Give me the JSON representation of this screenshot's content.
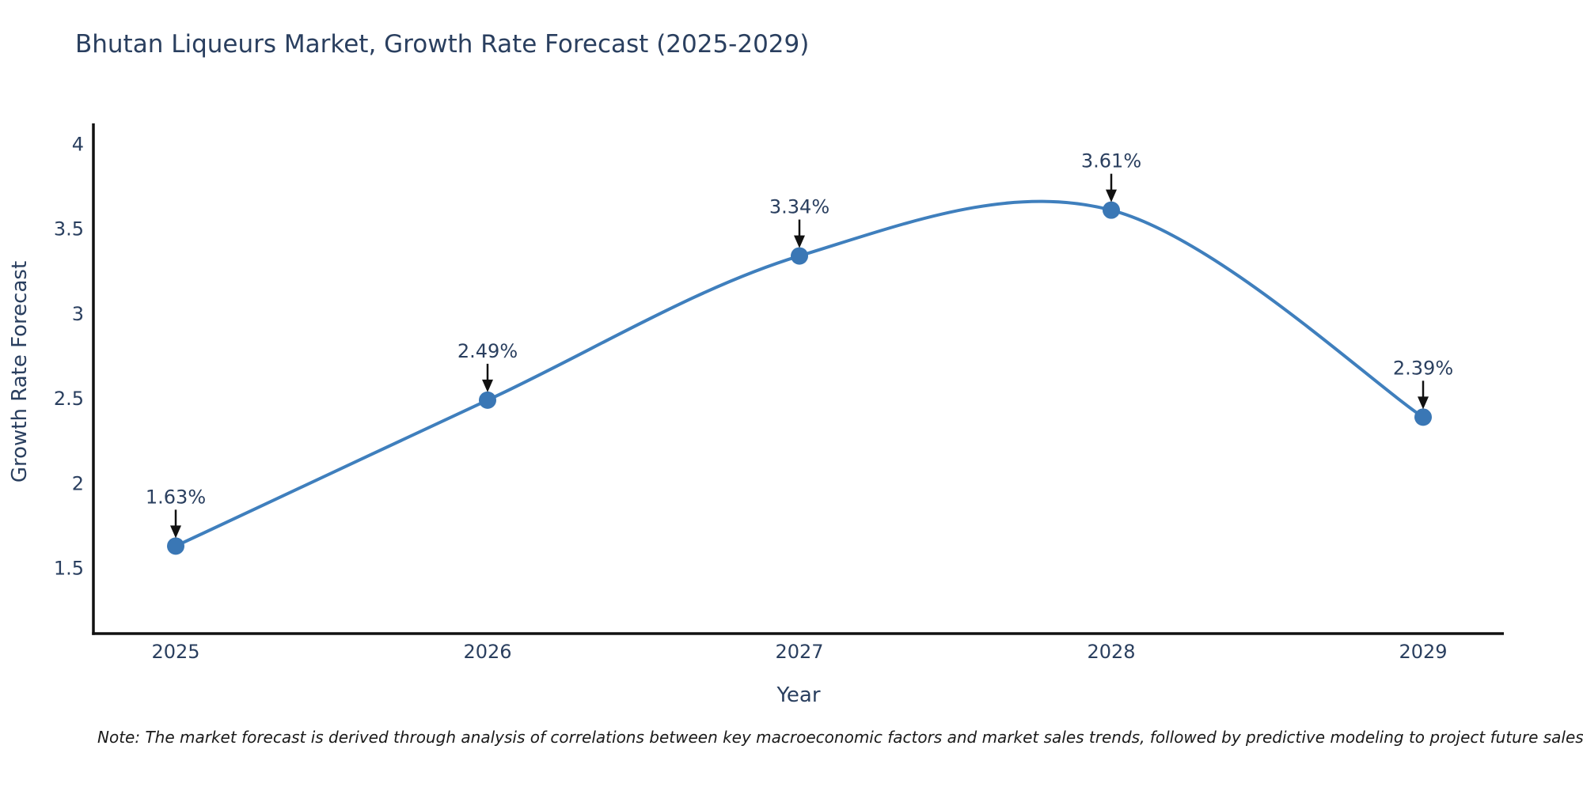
{
  "title": "Bhutan Liqueurs Market, Growth Rate Forecast (2025-2029)",
  "note": "Note: The market forecast is derived through analysis of correlations between key macroeconomic factors and market sales trends, followed by predictive modeling to project future sales",
  "colors": {
    "background": "#ffffff",
    "title_text": "#2a3f5f",
    "axis_text": "#2a3f5f",
    "axis_line": "#111111",
    "line": "#3f7fbd",
    "marker": "#3a77b5",
    "arrow": "#111111",
    "note_text": "#1a1a1a"
  },
  "chart_data": {
    "type": "line",
    "title": "Bhutan Liqueurs Market, Growth Rate Forecast (2025-2029)",
    "xlabel": "Year",
    "ylabel": "Growth Rate Forecast",
    "categories": [
      "2025",
      "2026",
      "2027",
      "2028",
      "2029"
    ],
    "values": [
      1.63,
      2.49,
      3.34,
      3.61,
      2.39
    ],
    "point_labels": [
      "1.63%",
      "2.49%",
      "3.34%",
      "3.61%",
      "2.39%"
    ],
    "yticks": [
      1.5,
      2,
      2.5,
      3,
      3.5,
      4
    ],
    "ylim": [
      1.11,
      4.12
    ],
    "grid": false,
    "legend": "none",
    "line_shape": "spline",
    "marker": "circle",
    "annotations": "value labels above each point with downward arrows"
  }
}
